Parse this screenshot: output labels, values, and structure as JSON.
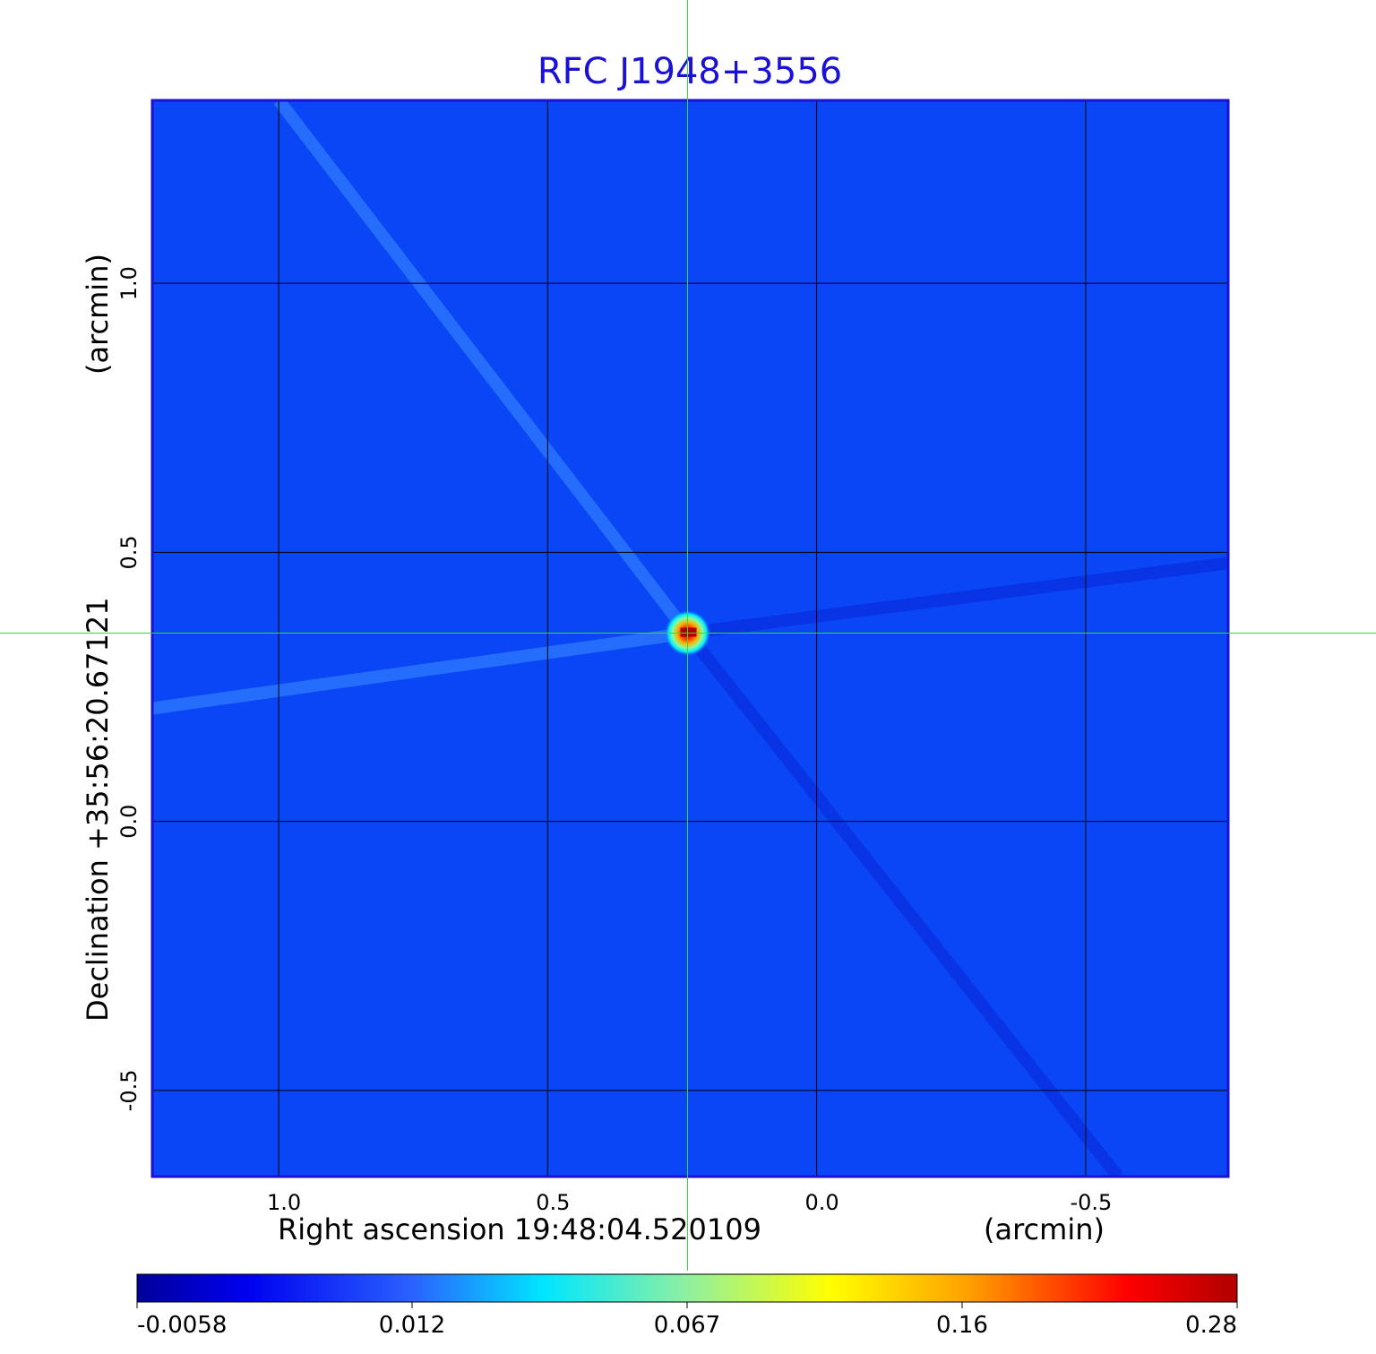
{
  "chart_data": {
    "type": "heatmap",
    "title": "RFC J1948+3556",
    "xlabel": "Right ascension  19:48:04.520109",
    "xunit": "(arcmin)",
    "ylabel": "Declination  +35:56:20.67121",
    "yunit": "(arcmin)",
    "x_range": [
      1.235,
      -0.765
    ],
    "y_range": [
      -0.66,
      1.34
    ],
    "x_ticks": [
      {
        "value": 1.0,
        "label": "1.0"
      },
      {
        "value": 0.5,
        "label": "0.5"
      },
      {
        "value": 0.0,
        "label": "0.0"
      },
      {
        "value": -0.5,
        "label": "-0.5"
      }
    ],
    "y_ticks": [
      {
        "value": 1.0,
        "label": "1.0"
      },
      {
        "value": 0.5,
        "label": "0.5"
      },
      {
        "value": 0.0,
        "label": "0.0"
      },
      {
        "value": -0.5,
        "label": "-0.5"
      }
    ],
    "grid": true,
    "crosshair": {
      "x": 0.24,
      "y": 0.35
    },
    "peak": {
      "x": 0.24,
      "y": 0.35,
      "value": 0.28
    },
    "background_level": 0.004,
    "sidelobes": [
      {
        "from": [
          1.0,
          1.34
        ],
        "to": [
          0.24,
          0.35
        ],
        "value": 0.006
      },
      {
        "from": [
          0.24,
          0.35
        ],
        "to": [
          -0.56,
          -0.66
        ],
        "value": -0.004
      },
      {
        "from": [
          1.235,
          0.21
        ],
        "to": [
          0.24,
          0.35
        ],
        "value": 0.007
      },
      {
        "from": [
          0.24,
          0.35
        ],
        "to": [
          -0.765,
          0.48
        ],
        "value": -0.005
      }
    ],
    "colorbar": {
      "scale": "nonlinear",
      "ticks": [
        "-0.0058",
        "0.012",
        "0.067",
        "0.16",
        "0.28"
      ],
      "range": [
        -0.0058,
        0.28
      ]
    },
    "colors": {
      "title": "#1a10d6",
      "background_map": "#0a46f5",
      "crosshair": "#33dd33",
      "frame": "#1a10d6"
    }
  }
}
